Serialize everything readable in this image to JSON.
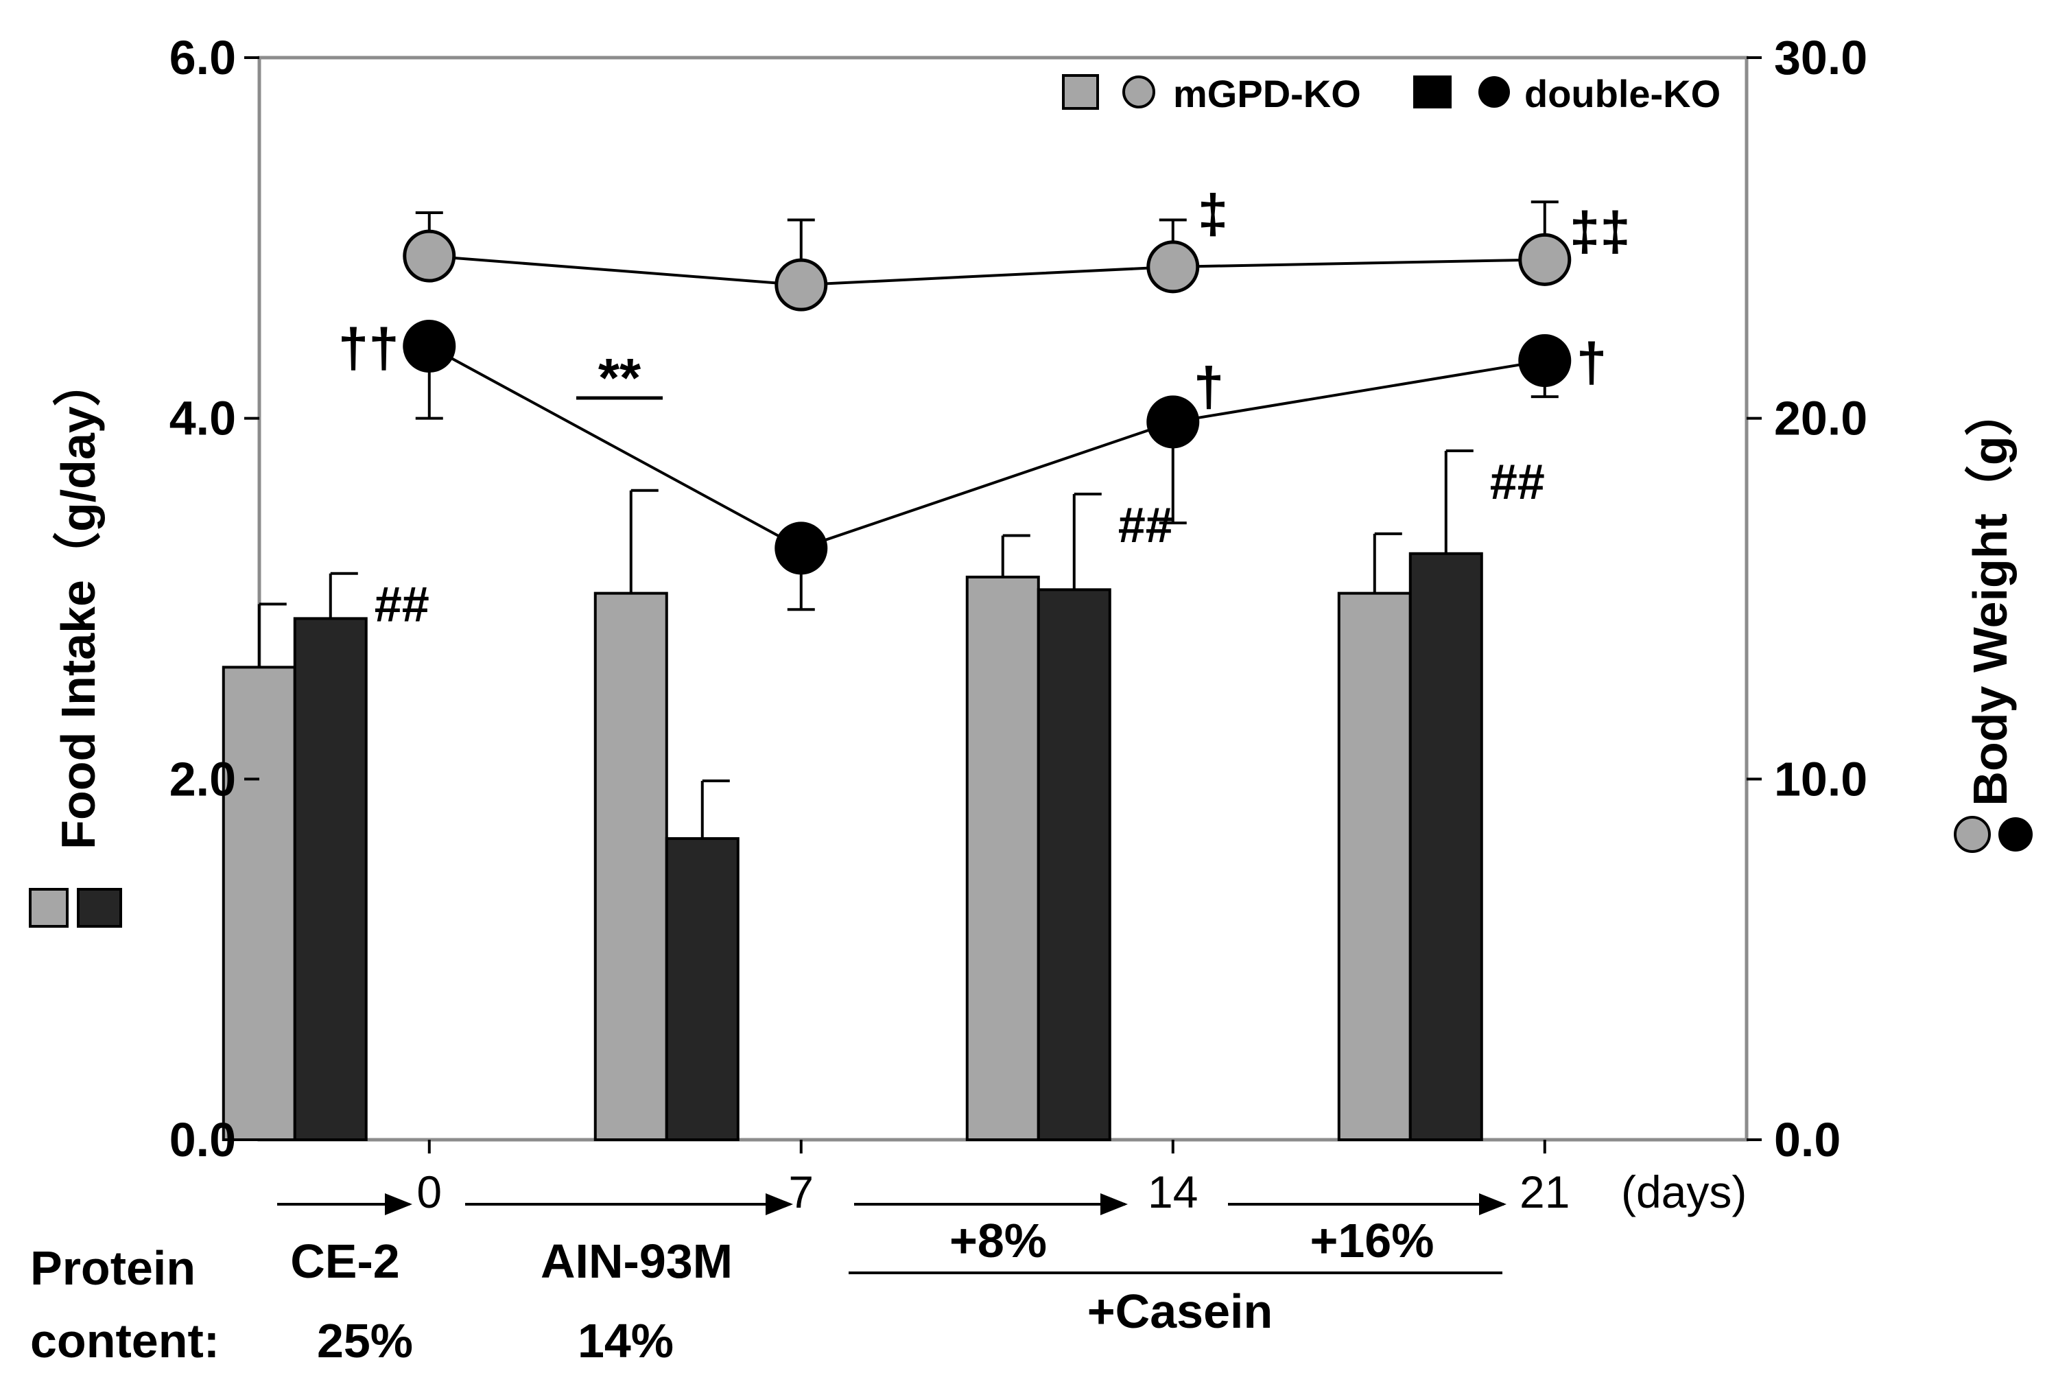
{
  "chart_data": {
    "type": "bar+line",
    "x_label_unit": "(days)",
    "x_ticks": [
      {
        "label": "0",
        "value": 0
      },
      {
        "label": "7",
        "value": 7
      },
      {
        "label": "14",
        "value": 14
      },
      {
        "label": "21",
        "value": 21
      }
    ],
    "xlim": [
      -3.2,
      24.8
    ],
    "left_axis": {
      "label": "Food Intake（g/day）",
      "ylim": [
        0,
        6
      ],
      "ticks": [
        "0.0",
        "2.0",
        "4.0",
        "6.0"
      ],
      "tick_values": [
        0,
        2,
        4,
        6
      ]
    },
    "right_axis": {
      "label": "Body Weight（g）",
      "ylim": [
        0,
        30
      ],
      "ticks": [
        "0.0",
        "10.0",
        "20.0",
        "30.0"
      ],
      "tick_values": [
        0,
        10,
        20,
        30
      ]
    },
    "legend": {
      "placement": "top-right",
      "entries": [
        {
          "name": "mGPD-KO",
          "color": "#a6a6a6"
        },
        {
          "name": "double-KO",
          "color": "#000000"
        }
      ]
    },
    "bars": {
      "axis": "left",
      "groups": [
        {
          "center_day": 0.0,
          "annotation": "##",
          "annotation_on": "double-KO"
        },
        {
          "center_day": 7.0,
          "annotation": "",
          "annotation_on": ""
        },
        {
          "center_day": 14.0,
          "annotation": "##",
          "annotation_on": "double-KO"
        },
        {
          "center_day": 21.0,
          "annotation": "##",
          "annotation_on": "double-KO"
        }
      ],
      "series": [
        {
          "name": "mGPD-KO",
          "color": "#a6a6a6",
          "values": [
            2.62,
            3.03,
            3.12,
            3.03
          ],
          "errors": [
            0.35,
            0.57,
            0.23,
            0.33
          ]
        },
        {
          "name": "double-KO",
          "color": "#262626",
          "values": [
            2.89,
            1.67,
            3.05,
            3.25
          ],
          "errors": [
            0.25,
            0.32,
            0.53,
            0.57
          ]
        }
      ]
    },
    "lines": {
      "axis": "right",
      "x": [
        0,
        7,
        14,
        21
      ],
      "series": [
        {
          "name": "mGPD-KO",
          "color": "#a6a6a6",
          "values": [
            24.5,
            23.7,
            24.2,
            24.4
          ],
          "errors": [
            1.2,
            1.8,
            1.3,
            1.6
          ],
          "annotations": [
            "",
            "",
            "‡",
            "‡‡"
          ]
        },
        {
          "name": "double-KO",
          "color": "#000000",
          "values": [
            22.0,
            16.4,
            19.9,
            21.6
          ],
          "errors": [
            2.0,
            1.7,
            2.8,
            1.0
          ],
          "annotations": [
            "††",
            "",
            "†",
            "†"
          ]
        }
      ]
    },
    "significance": {
      "label": "**",
      "day": 5.5,
      "right_value": 20.9
    }
  },
  "diet_panel": {
    "row_label_1": "Protein",
    "row_label_2": "content:",
    "ce2_name": "CE-2",
    "ce2_protein": "25%",
    "ain_name": "AIN-93M",
    "ain_protein": "14%",
    "plus8": "+8%",
    "plus16": "+16%",
    "casein": "+Casein"
  },
  "colors": {
    "mgpd": "#a6a6a6",
    "double": "#262626",
    "axis_frame": "#8c8c8c"
  }
}
